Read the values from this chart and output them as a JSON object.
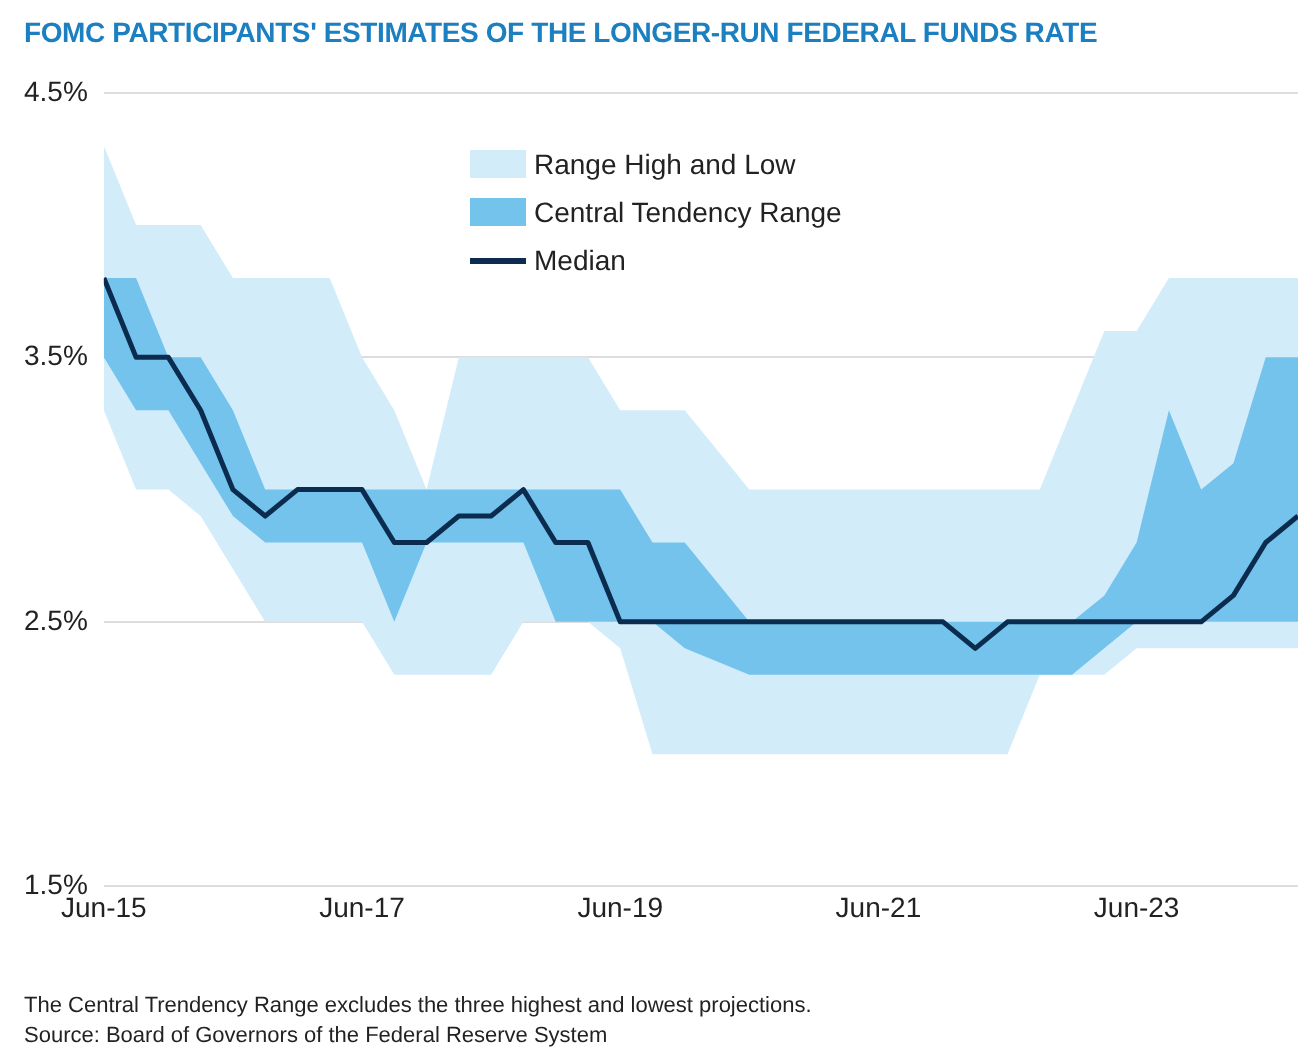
{
  "chart_data": {
    "type": "area",
    "title": "FOMC PARTICIPANTS' ESTIMATES OF THE LONGER-RUN FEDERAL FUNDS RATE",
    "x": [
      "2015-06",
      "2015-09",
      "2015-12",
      "2016-03",
      "2016-06",
      "2016-09",
      "2016-12",
      "2017-03",
      "2017-06",
      "2017-09",
      "2017-12",
      "2018-03",
      "2018-06",
      "2018-09",
      "2018-12",
      "2019-03",
      "2019-06",
      "2019-09",
      "2019-12",
      "2020-06",
      "2020-09",
      "2020-12",
      "2021-03",
      "2021-06",
      "2021-09",
      "2021-12",
      "2022-03",
      "2022-06",
      "2022-09",
      "2022-12",
      "2023-03",
      "2023-06",
      "2023-09",
      "2023-12",
      "2024-03",
      "2024-06",
      "2024-09"
    ],
    "series": [
      {
        "name": "Range High and Low",
        "type": "area",
        "color": "#d3ecfa",
        "lower": [
          3.3,
          3.0,
          3.0,
          2.9,
          2.7,
          2.5,
          2.5,
          2.5,
          2.5,
          2.3,
          2.3,
          2.3,
          2.3,
          2.5,
          2.5,
          2.5,
          2.4,
          2.0,
          2.0,
          2.0,
          2.0,
          2.0,
          2.0,
          2.0,
          2.0,
          2.0,
          2.0,
          2.0,
          2.3,
          2.3,
          2.3,
          2.4,
          2.4,
          2.4,
          2.4,
          2.4,
          2.4
        ],
        "upper": [
          4.3,
          4.0,
          4.0,
          4.0,
          3.8,
          3.8,
          3.8,
          3.8,
          3.5,
          3.3,
          3.0,
          3.5,
          3.5,
          3.5,
          3.5,
          3.5,
          3.3,
          3.3,
          3.3,
          3.0,
          3.0,
          3.0,
          3.0,
          3.0,
          3.0,
          3.0,
          3.0,
          3.0,
          3.0,
          3.3,
          3.6,
          3.6,
          3.8,
          3.8,
          3.8,
          3.8,
          3.8
        ],
        "values": [
          null,
          null,
          null,
          null,
          null,
          null,
          null,
          null,
          null,
          null,
          null,
          null,
          null,
          null,
          null,
          null,
          null,
          null,
          null,
          null,
          null,
          null,
          null,
          null,
          null,
          null,
          null,
          null,
          null,
          null,
          null,
          null,
          null,
          null,
          null,
          null,
          null
        ]
      },
      {
        "name": "Central Tendency Range",
        "type": "area",
        "color": "#74c3ec",
        "lower": [
          3.5,
          3.3,
          3.3,
          3.1,
          2.9,
          2.8,
          2.8,
          2.8,
          2.8,
          2.5,
          2.8,
          2.8,
          2.8,
          2.8,
          2.5,
          2.5,
          2.5,
          2.5,
          2.4,
          2.3,
          2.3,
          2.3,
          2.3,
          2.3,
          2.3,
          2.3,
          2.3,
          2.3,
          2.3,
          2.3,
          2.4,
          2.5,
          2.5,
          2.5,
          2.5,
          2.5,
          2.5
        ],
        "upper": [
          3.8,
          3.8,
          3.5,
          3.5,
          3.3,
          3.0,
          3.0,
          3.0,
          3.0,
          3.0,
          3.0,
          3.0,
          3.0,
          3.0,
          3.0,
          3.0,
          3.0,
          2.8,
          2.8,
          2.5,
          2.5,
          2.5,
          2.5,
          2.5,
          2.5,
          2.5,
          2.5,
          2.5,
          2.5,
          2.5,
          2.6,
          2.8,
          3.3,
          3.0,
          3.1,
          3.5,
          3.5
        ],
        "values": [
          null,
          null,
          null,
          null,
          null,
          null,
          null,
          null,
          null,
          null,
          null,
          null,
          null,
          null,
          null,
          null,
          null,
          null,
          null,
          null,
          null,
          null,
          null,
          null,
          null,
          null,
          null,
          null,
          null,
          null,
          null,
          null,
          null,
          null,
          null,
          null,
          null
        ]
      },
      {
        "name": "Median",
        "type": "line",
        "color": "#0b2c4f",
        "values": [
          3.8,
          3.5,
          3.5,
          3.3,
          3.0,
          2.9,
          3.0,
          3.0,
          3.0,
          2.8,
          2.8,
          2.9,
          2.9,
          3.0,
          2.8,
          2.8,
          2.5,
          2.5,
          2.5,
          2.5,
          2.5,
          2.5,
          2.5,
          2.5,
          2.5,
          2.5,
          2.4,
          2.5,
          2.5,
          2.5,
          2.5,
          2.5,
          2.5,
          2.5,
          2.6,
          2.8,
          2.9
        ]
      }
    ],
    "xlim": [
      "2015-06",
      "2024-09"
    ],
    "xticks": [
      {
        "value": "2015-06",
        "label": "Jun-15"
      },
      {
        "value": "2017-06",
        "label": "Jun-17"
      },
      {
        "value": "2019-06",
        "label": "Jun-19"
      },
      {
        "value": "2021-06",
        "label": "Jun-21"
      },
      {
        "value": "2023-06",
        "label": "Jun-23"
      }
    ],
    "ylim": [
      1.5,
      4.5
    ],
    "yticks": [
      {
        "value": 1.5,
        "label": "1.5%"
      },
      {
        "value": 2.5,
        "label": "2.5%"
      },
      {
        "value": 3.5,
        "label": "3.5%"
      },
      {
        "value": 4.5,
        "label": "4.5%"
      }
    ],
    "grid": "y",
    "legend": "top",
    "line_style": "solid",
    "marker": "none",
    "annotations": [
      "The Central Trendency Range excludes the three highest and lowest projections.",
      "Source: Board of Governors of the Federal Reserve System"
    ]
  }
}
